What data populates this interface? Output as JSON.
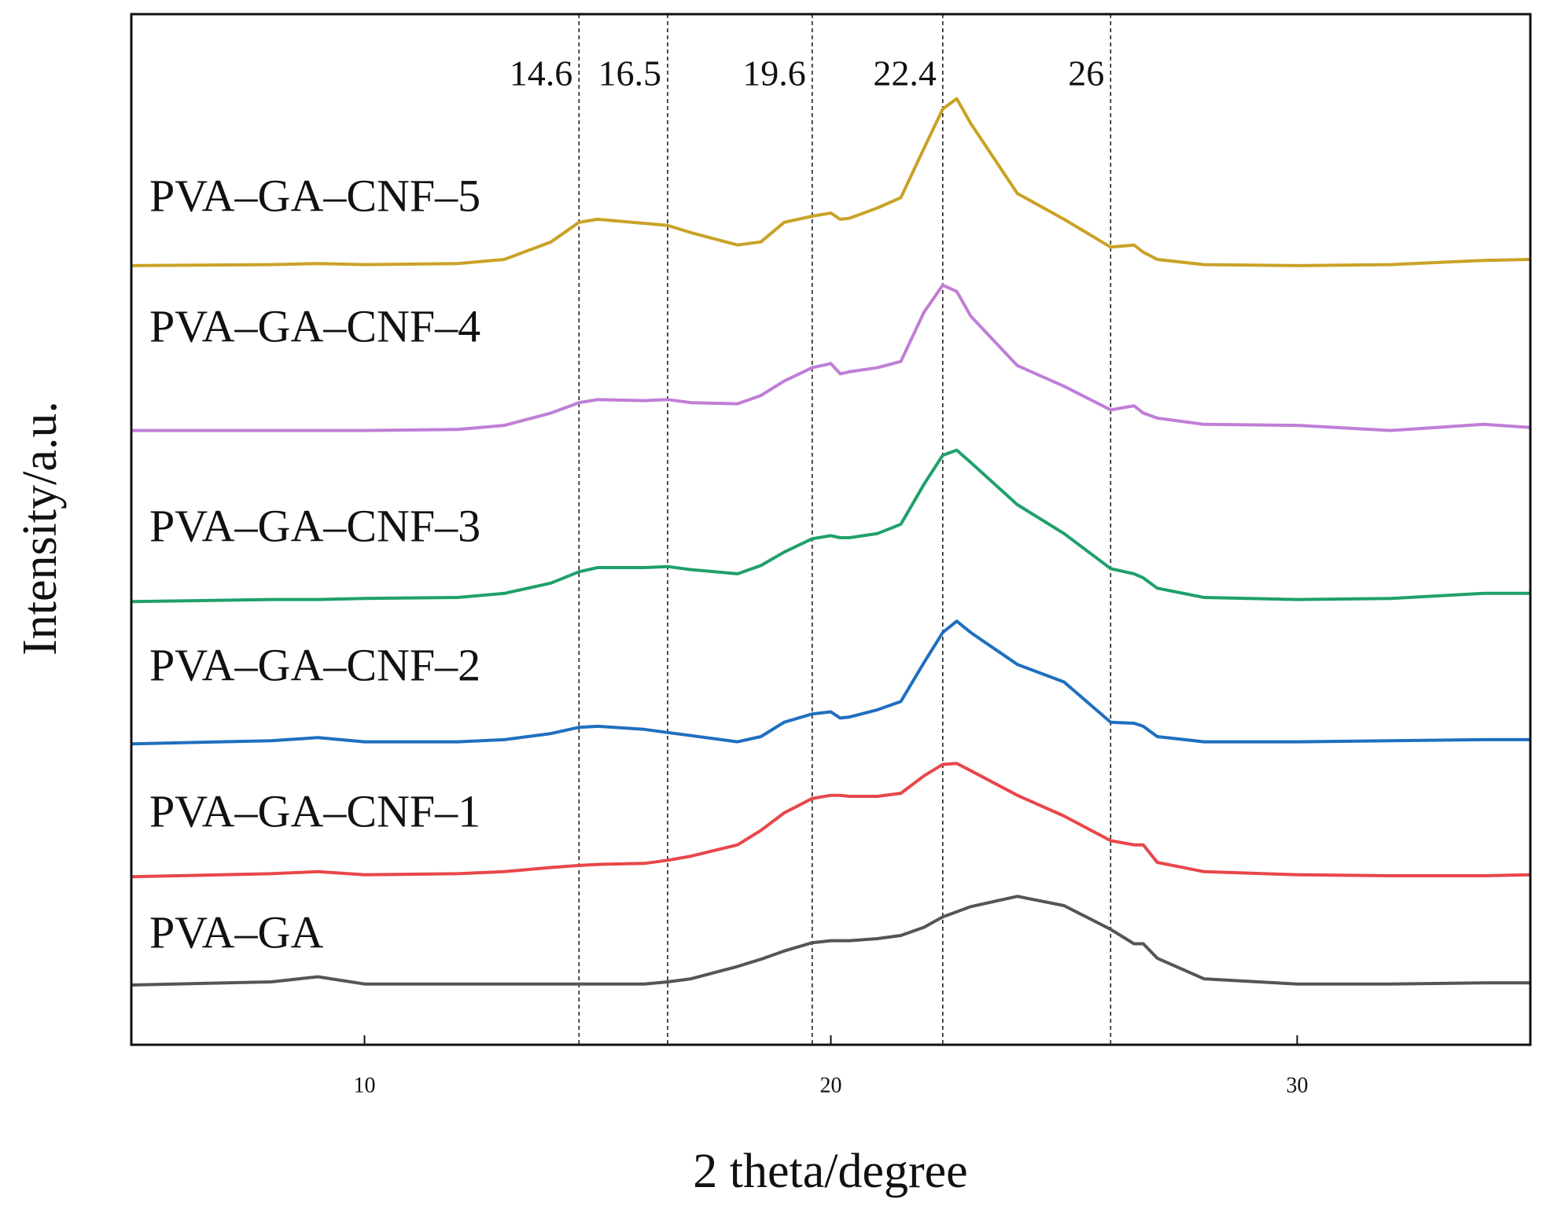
{
  "chart_data": {
    "type": "line",
    "xlabel": "2 theta/degree",
    "ylabel": "Intensity/a.u.",
    "xlim": [
      5,
      35
    ],
    "ylim": [
      0,
      100
    ],
    "xticks": [
      10,
      20,
      30
    ],
    "annotations": [
      {
        "value": 14.6,
        "label": "14.6"
      },
      {
        "value": 16.5,
        "label": "16.5"
      },
      {
        "value": 19.6,
        "label": "19.6"
      },
      {
        "value": 22.4,
        "label": "22.4"
      },
      {
        "value": 26,
        "label": "26"
      }
    ],
    "x": [
      5,
      8,
      9,
      10,
      12,
      13,
      14,
      14.6,
      15,
      16,
      16.5,
      17,
      18,
      18.5,
      19,
      19.6,
      20,
      20.2,
      20.4,
      21,
      21.5,
      22,
      22.4,
      22.7,
      23,
      24,
      25,
      26,
      26.5,
      26.7,
      27,
      28,
      30,
      32,
      34,
      35
    ],
    "series": [
      {
        "name": "PVA–GA",
        "color": "#555555",
        "values": [
          5.8,
          6.1,
          6.6,
          5.9,
          5.9,
          5.9,
          5.9,
          5.9,
          5.9,
          5.9,
          6.1,
          6.4,
          7.6,
          8.3,
          9.1,
          9.9,
          10.1,
          10.1,
          10.1,
          10.3,
          10.6,
          11.4,
          12.4,
          12.9,
          13.4,
          14.4,
          13.5,
          11.2,
          9.8,
          9.8,
          8.4,
          6.4,
          5.9,
          5.9,
          6.0,
          6.0
        ]
      },
      {
        "name": "PVA–GA–CNF–1",
        "color": "#e8474a",
        "values": [
          16.3,
          16.6,
          16.8,
          16.5,
          16.6,
          16.8,
          17.2,
          17.4,
          17.5,
          17.6,
          17.9,
          18.3,
          19.4,
          20.8,
          22.5,
          23.9,
          24.2,
          24.2,
          24.1,
          24.1,
          24.4,
          26.1,
          27.2,
          27.3,
          26.6,
          24.2,
          22.2,
          19.8,
          19.4,
          19.4,
          17.7,
          16.8,
          16.5,
          16.4,
          16.4,
          16.5
        ]
      },
      {
        "name": "PVA–GA–CNF–2",
        "color": "#1f6fbf",
        "values": [
          29.2,
          29.5,
          29.8,
          29.4,
          29.4,
          29.6,
          30.2,
          30.8,
          30.9,
          30.6,
          30.3,
          30.0,
          29.4,
          29.9,
          31.3,
          32.1,
          32.3,
          31.7,
          31.8,
          32.5,
          33.3,
          37.1,
          40.0,
          41.1,
          40.0,
          36.9,
          35.2,
          31.3,
          31.2,
          30.9,
          29.9,
          29.4,
          29.4,
          29.5,
          29.6,
          29.6
        ]
      },
      {
        "name": "PVA–GA–CNF–3",
        "color": "#1fa06a",
        "values": [
          43.0,
          43.2,
          43.2,
          43.3,
          43.4,
          43.8,
          44.8,
          45.9,
          46.3,
          46.3,
          46.4,
          46.1,
          45.7,
          46.5,
          47.8,
          49.1,
          49.4,
          49.2,
          49.2,
          49.6,
          50.5,
          54.4,
          57.2,
          57.7,
          56.5,
          52.4,
          49.6,
          46.2,
          45.7,
          45.3,
          44.3,
          43.4,
          43.2,
          43.3,
          43.8,
          43.8
        ]
      },
      {
        "name": "PVA–GA–CNF–4",
        "color": "#c07ed6",
        "values": [
          59.6,
          59.6,
          59.6,
          59.6,
          59.7,
          60.1,
          61.3,
          62.3,
          62.6,
          62.5,
          62.6,
          62.3,
          62.2,
          63.0,
          64.4,
          65.7,
          66.1,
          65.1,
          65.3,
          65.7,
          66.3,
          71.1,
          73.7,
          73.1,
          70.7,
          65.9,
          63.9,
          61.6,
          62.0,
          61.3,
          60.8,
          60.2,
          60.1,
          59.6,
          60.2,
          59.9
        ]
      },
      {
        "name": "PVA–GA–CNF–5",
        "color": "#c9a227",
        "values": [
          75.6,
          75.7,
          75.8,
          75.7,
          75.8,
          76.2,
          77.9,
          79.8,
          80.1,
          79.7,
          79.5,
          78.8,
          77.6,
          77.9,
          79.8,
          80.4,
          80.7,
          80.1,
          80.2,
          81.2,
          82.2,
          87.0,
          90.8,
          91.8,
          89.4,
          82.6,
          80.1,
          77.4,
          77.6,
          76.9,
          76.2,
          75.7,
          75.6,
          75.7,
          76.1,
          76.2
        ]
      }
    ]
  }
}
